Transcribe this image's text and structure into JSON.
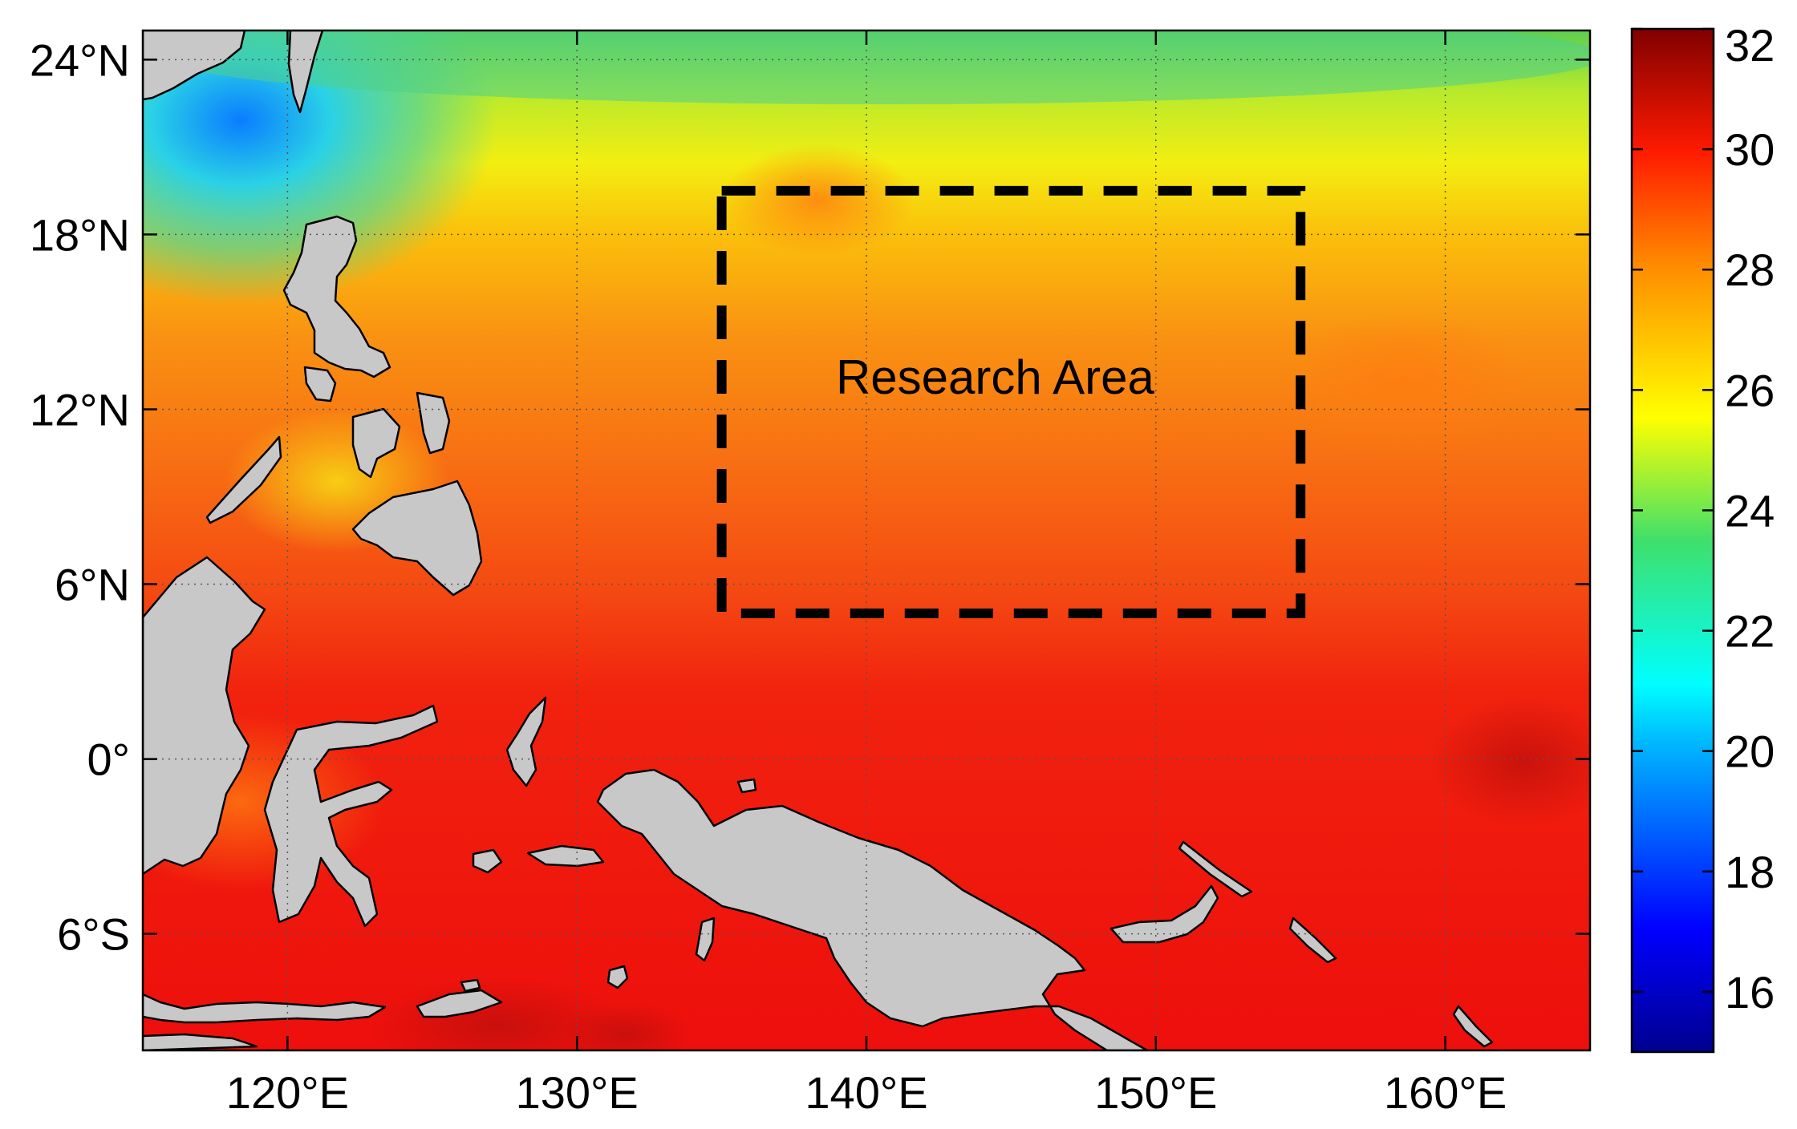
{
  "map": {
    "region": "Western Pacific",
    "lon_range": [
      115,
      165
    ],
    "lat_range": [
      -10,
      25
    ],
    "land_color": "#c8c8c8",
    "coastline_color": "#000000",
    "grid": "dotted",
    "x_ticks": [
      {
        "value": 120,
        "label": "120°E"
      },
      {
        "value": 130,
        "label": "130°E"
      },
      {
        "value": 140,
        "label": "140°E"
      },
      {
        "value": 150,
        "label": "150°E"
      },
      {
        "value": 160,
        "label": "160°E"
      }
    ],
    "y_ticks": [
      {
        "value": 24,
        "label": "24°N"
      },
      {
        "value": 18,
        "label": "18°N"
      },
      {
        "value": 12,
        "label": "12°N"
      },
      {
        "value": 6,
        "label": "6°N"
      },
      {
        "value": 0,
        "label": "0°"
      },
      {
        "value": -6,
        "label": "6°S"
      }
    ],
    "research_area": {
      "label": "Research Area",
      "lon": [
        135,
        155
      ],
      "lat": [
        5,
        19.5
      ],
      "style": "dashed"
    },
    "colorbar": {
      "range": [
        15,
        32
      ],
      "colormap": "jet",
      "position": "right",
      "ticks": [
        {
          "value": 32,
          "label": "32"
        },
        {
          "value": 30,
          "label": "30"
        },
        {
          "value": 28,
          "label": "28"
        },
        {
          "value": 26,
          "label": "26"
        },
        {
          "value": 24,
          "label": "24"
        },
        {
          "value": 22,
          "label": "22"
        },
        {
          "value": 20,
          "label": "20"
        },
        {
          "value": 18,
          "label": "18"
        },
        {
          "value": 16,
          "label": "16"
        }
      ]
    }
  }
}
